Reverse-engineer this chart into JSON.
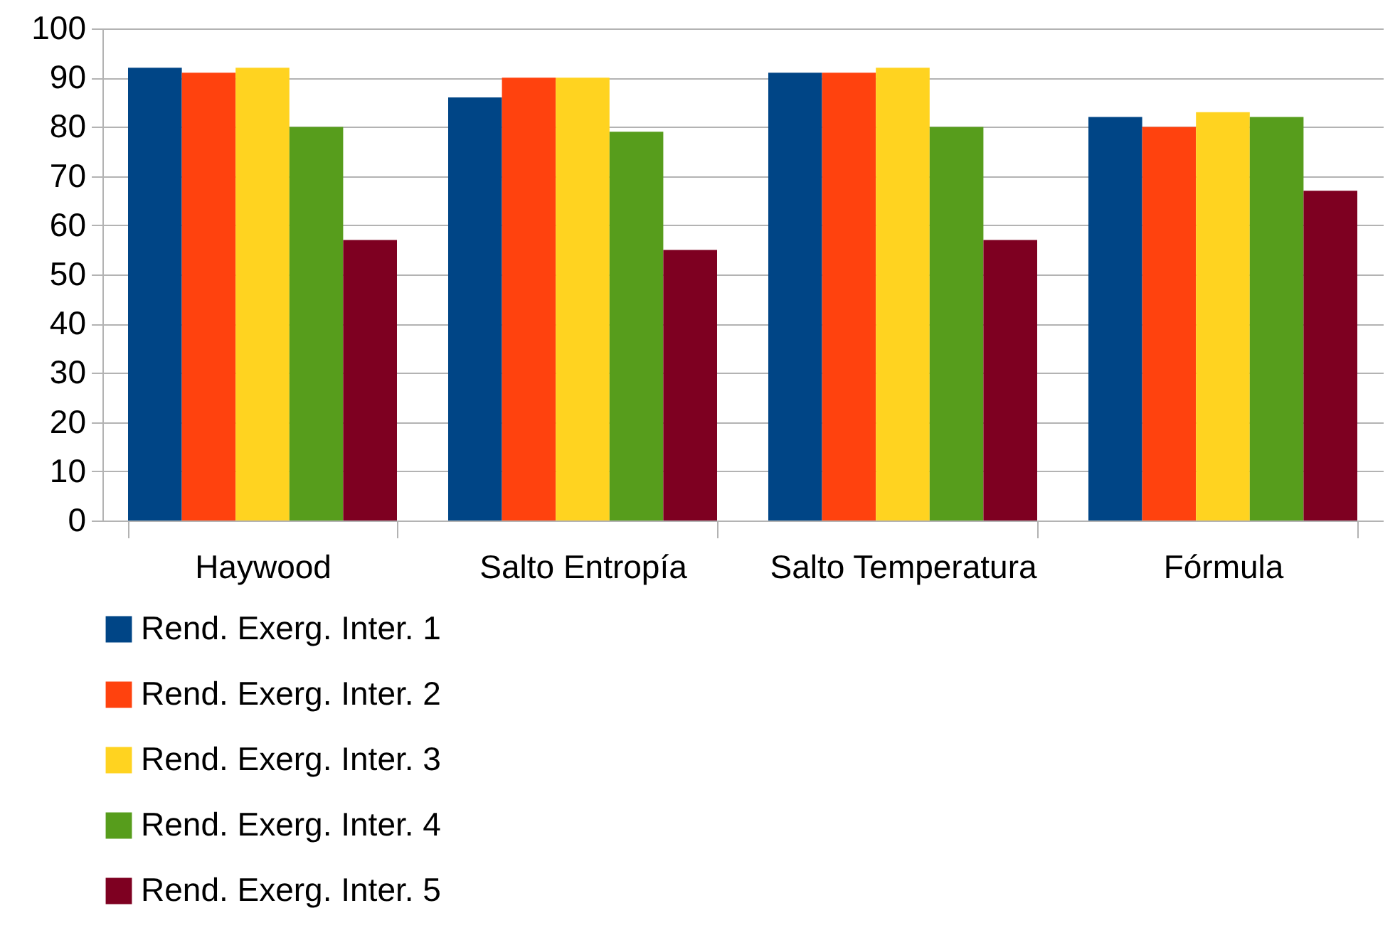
{
  "chart_data": {
    "type": "bar",
    "categories": [
      "Haywood",
      "Salto Entropía",
      "Salto Temperatura",
      "Fórmula"
    ],
    "series": [
      {
        "name": "Rend. Exerg. Inter. 1",
        "color": "#004586",
        "values": [
          92,
          86,
          91,
          82
        ]
      },
      {
        "name": "Rend. Exerg. Inter. 2",
        "color": "#ff420e",
        "values": [
          91,
          90,
          91,
          80
        ]
      },
      {
        "name": "Rend. Exerg. Inter. 3",
        "color": "#ffd320",
        "values": [
          92,
          90,
          92,
          83
        ]
      },
      {
        "name": "Rend. Exerg. Inter. 4",
        "color": "#579d1c",
        "values": [
          80,
          79,
          80,
          82
        ]
      },
      {
        "name": "Rend. Exerg. Inter. 5",
        "color": "#7e0021",
        "values": [
          57,
          55,
          57,
          67
        ]
      }
    ],
    "ylim": [
      0,
      100
    ],
    "yticks": [
      0,
      10,
      20,
      30,
      40,
      50,
      60,
      70,
      80,
      90,
      100
    ],
    "grid": "y",
    "legend": "bottom left"
  }
}
